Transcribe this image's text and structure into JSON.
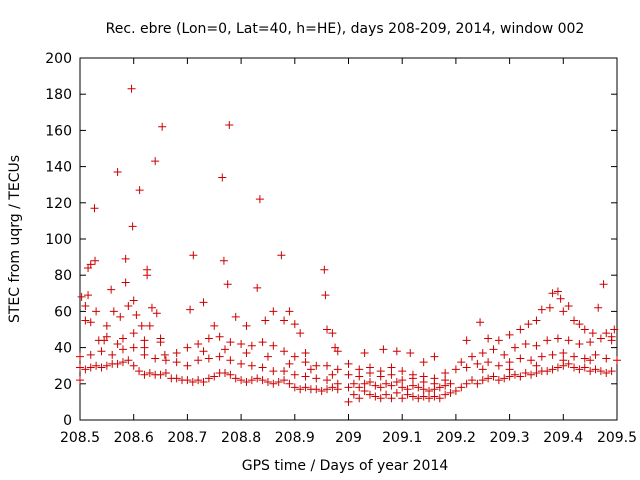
{
  "chart_data": {
    "type": "scatter",
    "title": "Rec. ebre (Lon=0, Lat=40, h=HE), days 208-209, 2014, window 002",
    "xlabel": "GPS time / Days of year 2014",
    "ylabel": "STEC from uqrg / TECUs",
    "xlim": [
      208.5,
      209.5
    ],
    "ylim": [
      0,
      200
    ],
    "xticks": [
      "208.5",
      "208.6",
      "208.7",
      "208.8",
      "208.9",
      "209",
      "209.1",
      "209.2",
      "209.3",
      "209.4",
      "209.5"
    ],
    "yticks": [
      "0",
      "20",
      "40",
      "60",
      "80",
      "100",
      "120",
      "140",
      "160",
      "180",
      "200"
    ],
    "grid": false,
    "legend": "none",
    "marker": "plus",
    "marker_color": "#cc0000",
    "points": [
      [
        208.503,
        68
      ],
      [
        208.51,
        63
      ],
      [
        208.515,
        69
      ],
      [
        208.515,
        84
      ],
      [
        208.52,
        86
      ],
      [
        208.528,
        88
      ],
      [
        208.527,
        117
      ],
      [
        208.51,
        55
      ],
      [
        208.52,
        54
      ],
      [
        208.53,
        60
      ],
      [
        208.535,
        44
      ],
      [
        208.545,
        44
      ],
      [
        208.55,
        52
      ],
      [
        208.558,
        72
      ],
      [
        208.563,
        60
      ],
      [
        208.57,
        137
      ],
      [
        208.575,
        57
      ],
      [
        208.58,
        45
      ],
      [
        208.585,
        89
      ],
      [
        208.585,
        76
      ],
      [
        208.59,
        63
      ],
      [
        208.596,
        183
      ],
      [
        208.598,
        107
      ],
      [
        208.6,
        66
      ],
      [
        208.605,
        58
      ],
      [
        208.611,
        127
      ],
      [
        208.615,
        52
      ],
      [
        208.62,
        44
      ],
      [
        208.625,
        83
      ],
      [
        208.625,
        80
      ],
      [
        208.63,
        52
      ],
      [
        208.634,
        62
      ],
      [
        208.64,
        143
      ],
      [
        208.643,
        59
      ],
      [
        208.65,
        45
      ],
      [
        208.653,
        162
      ],
      [
        208.658,
        36
      ],
      [
        208.705,
        61
      ],
      [
        208.711,
        91
      ],
      [
        208.73,
        65
      ],
      [
        208.75,
        52
      ],
      [
        208.765,
        134
      ],
      [
        208.768,
        88
      ],
      [
        208.775,
        75
      ],
      [
        208.778,
        163
      ],
      [
        208.79,
        57
      ],
      [
        208.81,
        52
      ],
      [
        208.83,
        73
      ],
      [
        208.835,
        122
      ],
      [
        208.845,
        55
      ],
      [
        208.86,
        60
      ],
      [
        208.875,
        91
      ],
      [
        208.88,
        55
      ],
      [
        208.89,
        60
      ],
      [
        208.9,
        53
      ],
      [
        208.91,
        48
      ],
      [
        208.92,
        37
      ],
      [
        208.955,
        83
      ],
      [
        208.957,
        69
      ],
      [
        208.96,
        50
      ],
      [
        208.97,
        48
      ],
      [
        208.975,
        40
      ],
      [
        208.98,
        38
      ],
      [
        208.5,
        29
      ],
      [
        208.5,
        22
      ],
      [
        208.51,
        28
      ],
      [
        208.52,
        29
      ],
      [
        208.53,
        30
      ],
      [
        208.54,
        29
      ],
      [
        208.55,
        30
      ],
      [
        208.56,
        31
      ],
      [
        208.57,
        31
      ],
      [
        208.58,
        32
      ],
      [
        208.59,
        33
      ],
      [
        208.6,
        30
      ],
      [
        208.61,
        27
      ],
      [
        208.62,
        25
      ],
      [
        208.63,
        26
      ],
      [
        208.64,
        25
      ],
      [
        208.65,
        25
      ],
      [
        208.66,
        26
      ],
      [
        208.67,
        23
      ],
      [
        208.68,
        23
      ],
      [
        208.69,
        22
      ],
      [
        208.7,
        22
      ],
      [
        208.71,
        21
      ],
      [
        208.72,
        22
      ],
      [
        208.73,
        21
      ],
      [
        208.74,
        23
      ],
      [
        208.75,
        24
      ],
      [
        208.76,
        26
      ],
      [
        208.77,
        26
      ],
      [
        208.78,
        25
      ],
      [
        208.79,
        23
      ],
      [
        208.8,
        22
      ],
      [
        208.81,
        21
      ],
      [
        208.82,
        22
      ],
      [
        208.83,
        23
      ],
      [
        208.84,
        22
      ],
      [
        208.85,
        21
      ],
      [
        208.86,
        20
      ],
      [
        208.87,
        21
      ],
      [
        208.88,
        22
      ],
      [
        208.89,
        20
      ],
      [
        208.9,
        18
      ],
      [
        208.91,
        17
      ],
      [
        208.92,
        18
      ],
      [
        208.93,
        17
      ],
      [
        208.94,
        17
      ],
      [
        208.95,
        16
      ],
      [
        208.96,
        17
      ],
      [
        208.97,
        18
      ],
      [
        208.98,
        17
      ],
      [
        208.5,
        35
      ],
      [
        208.52,
        36
      ],
      [
        208.54,
        38
      ],
      [
        208.56,
        36
      ],
      [
        208.58,
        39
      ],
      [
        208.6,
        40
      ],
      [
        208.62,
        36
      ],
      [
        208.64,
        34
      ],
      [
        208.66,
        33
      ],
      [
        208.68,
        32
      ],
      [
        208.7,
        30
      ],
      [
        208.72,
        33
      ],
      [
        208.74,
        34
      ],
      [
        208.76,
        35
      ],
      [
        208.78,
        33
      ],
      [
        208.8,
        31
      ],
      [
        208.82,
        30
      ],
      [
        208.84,
        29
      ],
      [
        208.86,
        27
      ],
      [
        208.88,
        27
      ],
      [
        208.9,
        25
      ],
      [
        208.92,
        24
      ],
      [
        208.94,
        23
      ],
      [
        208.96,
        22
      ],
      [
        208.98,
        20
      ],
      [
        208.55,
        46
      ],
      [
        208.6,
        48
      ],
      [
        208.65,
        43
      ],
      [
        208.7,
        40
      ],
      [
        208.72,
        42
      ],
      [
        208.74,
        45
      ],
      [
        208.76,
        46
      ],
      [
        208.78,
        43
      ],
      [
        208.8,
        42
      ],
      [
        208.82,
        41
      ],
      [
        208.84,
        43
      ],
      [
        208.86,
        41
      ],
      [
        208.88,
        38
      ],
      [
        208.9,
        35
      ],
      [
        208.92,
        32
      ],
      [
        208.94,
        30
      ],
      [
        208.96,
        30
      ],
      [
        208.98,
        28
      ],
      [
        208.57,
        42
      ],
      [
        208.62,
        40
      ],
      [
        208.68,
        37
      ],
      [
        208.73,
        38
      ],
      [
        208.77,
        39
      ],
      [
        208.81,
        37
      ],
      [
        208.85,
        35
      ],
      [
        208.89,
        31
      ],
      [
        208.93,
        28
      ],
      [
        208.97,
        25
      ],
      [
        209.0,
        10
      ],
      [
        209.01,
        14
      ],
      [
        209.02,
        12
      ],
      [
        209.03,
        16
      ],
      [
        209.04,
        14
      ],
      [
        209.05,
        13
      ],
      [
        209.06,
        12
      ],
      [
        209.07,
        14
      ],
      [
        209.08,
        12
      ],
      [
        209.09,
        15
      ],
      [
        209.1,
        12
      ],
      [
        209.11,
        14
      ],
      [
        209.12,
        13
      ],
      [
        209.13,
        12
      ],
      [
        209.14,
        13
      ],
      [
        209.15,
        12
      ],
      [
        209.16,
        13
      ],
      [
        209.17,
        12
      ],
      [
        209.18,
        14
      ],
      [
        209.19,
        15
      ],
      [
        209.0,
        18
      ],
      [
        209.01,
        20
      ],
      [
        209.02,
        18
      ],
      [
        209.03,
        20
      ],
      [
        209.04,
        21
      ],
      [
        209.05,
        19
      ],
      [
        209.06,
        18
      ],
      [
        209.07,
        20
      ],
      [
        209.08,
        19
      ],
      [
        209.09,
        21
      ],
      [
        209.1,
        18
      ],
      [
        209.11,
        17
      ],
      [
        209.12,
        19
      ],
      [
        209.13,
        18
      ],
      [
        209.14,
        17
      ],
      [
        209.15,
        16
      ],
      [
        209.16,
        17
      ],
      [
        209.17,
        18
      ],
      [
        209.18,
        19
      ],
      [
        209.19,
        20
      ],
      [
        209.0,
        25
      ],
      [
        209.02,
        24
      ],
      [
        209.04,
        26
      ],
      [
        209.06,
        24
      ],
      [
        209.08,
        25
      ],
      [
        209.1,
        22
      ],
      [
        209.12,
        23
      ],
      [
        209.14,
        21
      ],
      [
        209.16,
        20
      ],
      [
        209.18,
        22
      ],
      [
        209.0,
        31
      ],
      [
        209.02,
        28
      ],
      [
        209.04,
        29
      ],
      [
        209.06,
        27
      ],
      [
        209.08,
        29
      ],
      [
        209.1,
        27
      ],
      [
        209.12,
        25
      ],
      [
        209.14,
        24
      ],
      [
        209.16,
        23
      ],
      [
        209.18,
        26
      ],
      [
        209.03,
        37
      ],
      [
        209.065,
        39
      ],
      [
        209.09,
        38
      ],
      [
        209.115,
        37
      ],
      [
        209.14,
        32
      ],
      [
        209.16,
        35
      ],
      [
        209.2,
        16
      ],
      [
        209.21,
        18
      ],
      [
        209.22,
        20
      ],
      [
        209.23,
        22
      ],
      [
        209.24,
        20
      ],
      [
        209.25,
        22
      ],
      [
        209.26,
        23
      ],
      [
        209.27,
        24
      ],
      [
        209.28,
        22
      ],
      [
        209.29,
        23
      ],
      [
        209.3,
        24
      ],
      [
        209.31,
        25
      ],
      [
        209.32,
        24
      ],
      [
        209.33,
        26
      ],
      [
        209.34,
        25
      ],
      [
        209.35,
        26
      ],
      [
        209.36,
        27
      ],
      [
        209.37,
        27
      ],
      [
        209.38,
        28
      ],
      [
        209.39,
        29
      ],
      [
        209.4,
        30
      ],
      [
        209.41,
        31
      ],
      [
        209.42,
        29
      ],
      [
        209.43,
        28
      ],
      [
        209.44,
        29
      ],
      [
        209.45,
        27
      ],
      [
        209.46,
        28
      ],
      [
        209.47,
        27
      ],
      [
        209.48,
        26
      ],
      [
        209.49,
        27
      ],
      [
        209.2,
        28
      ],
      [
        209.22,
        29
      ],
      [
        209.24,
        31
      ],
      [
        209.26,
        32
      ],
      [
        209.28,
        30
      ],
      [
        209.3,
        32
      ],
      [
        209.32,
        34
      ],
      [
        209.34,
        33
      ],
      [
        209.36,
        35
      ],
      [
        209.38,
        36
      ],
      [
        209.4,
        37
      ],
      [
        209.42,
        35
      ],
      [
        209.44,
        34
      ],
      [
        209.46,
        36
      ],
      [
        209.48,
        34
      ],
      [
        209.21,
        32
      ],
      [
        209.23,
        35
      ],
      [
        209.25,
        37
      ],
      [
        209.27,
        39
      ],
      [
        209.29,
        36
      ],
      [
        209.31,
        40
      ],
      [
        209.33,
        42
      ],
      [
        209.35,
        41
      ],
      [
        209.37,
        44
      ],
      [
        209.39,
        45
      ],
      [
        209.41,
        44
      ],
      [
        209.43,
        42
      ],
      [
        209.45,
        43
      ],
      [
        209.47,
        45
      ],
      [
        209.49,
        44
      ],
      [
        209.22,
        44
      ],
      [
        209.245,
        54
      ],
      [
        209.26,
        45
      ],
      [
        209.28,
        44
      ],
      [
        209.3,
        47
      ],
      [
        209.32,
        50
      ],
      [
        209.335,
        53
      ],
      [
        209.35,
        55
      ],
      [
        209.36,
        61
      ],
      [
        209.375,
        62
      ],
      [
        209.38,
        70
      ],
      [
        209.39,
        71
      ],
      [
        209.395,
        67
      ],
      [
        209.4,
        60
      ],
      [
        209.41,
        63
      ],
      [
        209.42,
        55
      ],
      [
        209.43,
        53
      ],
      [
        209.44,
        50
      ],
      [
        209.455,
        48
      ],
      [
        209.465,
        62
      ],
      [
        209.475,
        75
      ],
      [
        209.48,
        48
      ],
      [
        209.49,
        46
      ],
      [
        209.495,
        50
      ],
      [
        209.25,
        28
      ],
      [
        209.3,
        28
      ],
      [
        209.35,
        30
      ],
      [
        209.4,
        33
      ],
      [
        209.45,
        33
      ],
      [
        209.5,
        33
      ]
    ]
  }
}
